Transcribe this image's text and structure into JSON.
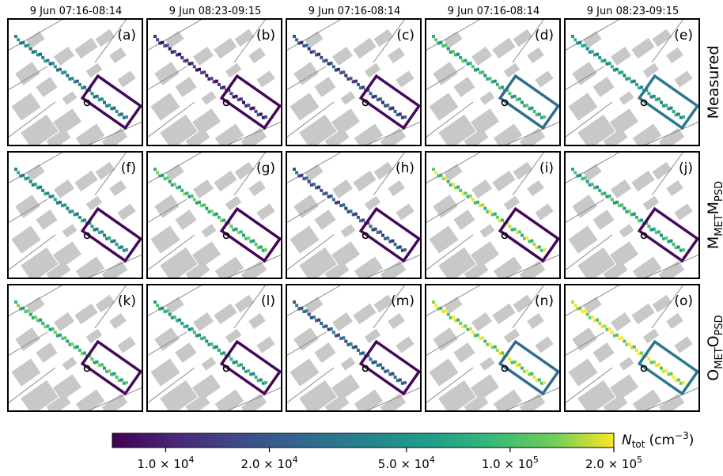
{
  "chart_data": {
    "type": "heatmap",
    "columns": [
      "9 Jun 07:16-08:14",
      "9 Jun 08:23-09:15",
      "9 Jun 07:16-08:14",
      "9 Jun 07:16-08:14",
      "9 Jun 08:23-09:15"
    ],
    "rows": [
      {
        "label_main": "Measured",
        "label_sub1": "",
        "label_mid": "",
        "label_sub2": ""
      },
      {
        "label_main": "M",
        "label_sub1": "MET",
        "label_mid": "M",
        "label_sub2": "PSD"
      },
      {
        "label_main": "O",
        "label_sub1": "MET",
        "label_mid": "O",
        "label_sub2": "PSD"
      }
    ],
    "panel_labels": [
      "(a)",
      "(b)",
      "(c)",
      "(d)",
      "(e)",
      "(f)",
      "(g)",
      "(h)",
      "(i)",
      "(j)",
      "(k)",
      "(l)",
      "(m)",
      "(n)",
      "(o)"
    ],
    "panel_levels": [
      {
        "street": 0.5,
        "loop": 0.02
      },
      {
        "street": 0.15,
        "loop": 0.02
      },
      {
        "street": 0.25,
        "loop": 0.03
      },
      {
        "street": 0.7,
        "loop": 0.4
      },
      {
        "street": 0.6,
        "loop": 0.45
      },
      {
        "street": 0.55,
        "loop": 0.02
      },
      {
        "street": 0.75,
        "loop": 0.01
      },
      {
        "street": 0.3,
        "loop": 0.02
      },
      {
        "street": 0.85,
        "loop": 0.01
      },
      {
        "street": 0.7,
        "loop": 0.03
      },
      {
        "street": 0.75,
        "loop": 0.03
      },
      {
        "street": 0.65,
        "loop": 0.02
      },
      {
        "street": 0.35,
        "loop": 0.02
      },
      {
        "street": 0.9,
        "loop": 0.4
      },
      {
        "street": 0.95,
        "loop": 0.45
      }
    ],
    "colorbar": {
      "label_main": "N",
      "label_sub": "tot",
      "label_unit": "(cm",
      "label_exp": "−3",
      "label_close": ")",
      "scale": "log",
      "range": [
        7000,
        200000
      ],
      "ticks": [
        {
          "value": 10000,
          "label": "1.0 × 10",
          "exp": "4"
        },
        {
          "value": 20000,
          "label": "2.0 × 10",
          "exp": "4"
        },
        {
          "value": 50000,
          "label": "5.0 × 10",
          "exp": "4"
        },
        {
          "value": 100000,
          "label": "1.0 × 10",
          "exp": "5"
        },
        {
          "value": 200000,
          "label": "2.0 × 10",
          "exp": "5"
        }
      ],
      "colormap": "viridis"
    }
  }
}
